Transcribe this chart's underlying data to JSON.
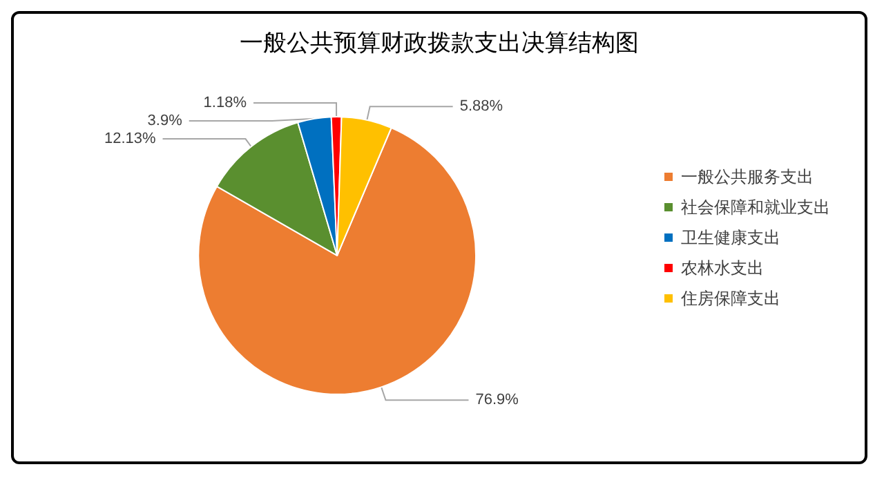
{
  "chart_data": {
    "type": "pie",
    "title": "一般公共预算财政拨款支出决算结构图",
    "categories": [
      "一般公共服务支出",
      "社会保障和就业支出",
      "卫生健康支出",
      "农林水支出",
      "住房保障支出"
    ],
    "values": [
      76.9,
      12.13,
      3.9,
      1.18,
      5.88
    ],
    "colors": [
      "#ed7d31",
      "#5a8f2f",
      "#0070c0",
      "#ff0000",
      "#ffc000"
    ],
    "value_labels": [
      "76.9%",
      "12.13%",
      "3.9%",
      "1.18%",
      "5.88%"
    ],
    "legend": "right"
  }
}
